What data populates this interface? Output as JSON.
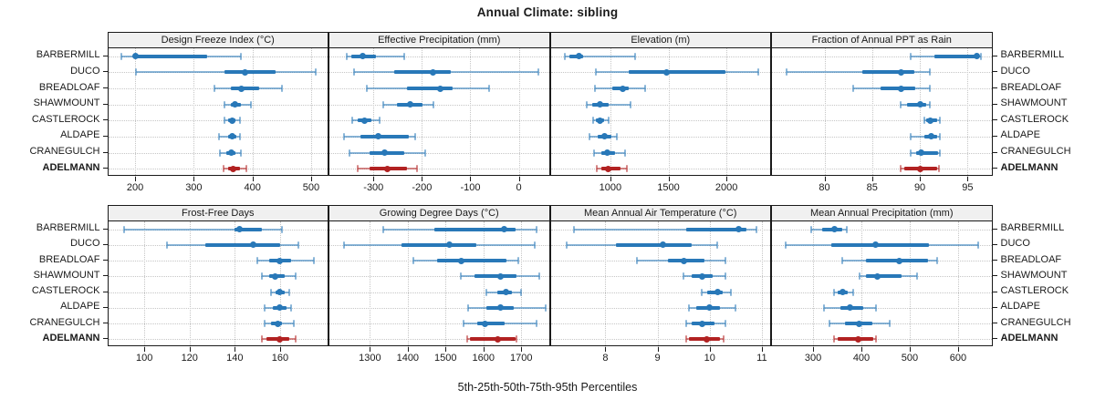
{
  "chart_data": {
    "type": "dot-interval (5-25-50-75-95 percentile trellis)",
    "title": "Annual Climate: sibling",
    "caption": "5th-25th-50th-75th-95th Percentiles",
    "legend_position": "none",
    "grid": "dotted",
    "percentile_order": [
      "p5",
      "p25",
      "p50",
      "p75",
      "p95"
    ],
    "sites": [
      "BARBERMILL",
      "DUCO",
      "BREADLOAF",
      "SHAWMOUNT",
      "CASTLEROCK",
      "ALDAPE",
      "CRANEGULCH",
      "ADELMANN"
    ],
    "highlight_site": "ADELMANN",
    "colors": {
      "site_color": "#2878b8",
      "highlight_color": "#b22222",
      "header_bg": "#f0f0f0",
      "panel_border": "#1a1a1a",
      "gridline": "#c6c6c6",
      "text": "#1a1a1a"
    },
    "panels": [
      {
        "title": "Design Freeze Index (°C)",
        "row": 0,
        "col": 0,
        "xlim": [
          154,
          528
        ],
        "ticks": [
          200,
          300,
          400,
          500
        ],
        "values": [
          [
            176,
            197,
            200,
            322,
            380
          ],
          [
            201,
            353,
            388,
            440,
            508
          ],
          [
            335,
            363,
            381,
            412,
            450
          ],
          [
            352,
            363,
            370,
            381,
            397
          ],
          [
            353,
            358,
            365,
            371,
            378
          ],
          [
            343,
            358,
            365,
            372,
            378
          ],
          [
            345,
            356,
            364,
            371,
            380
          ],
          [
            350,
            358,
            367,
            378,
            390
          ]
        ]
      },
      {
        "title": "Effective Precipitation (mm)",
        "row": 0,
        "col": 1,
        "xlim": [
          -391,
          62
        ],
        "ticks": [
          -300,
          -200,
          -100,
          0
        ],
        "values": [
          [
            -355,
            -345,
            -322,
            -295,
            -236
          ],
          [
            -340,
            -258,
            -177,
            -140,
            40
          ],
          [
            -314,
            -230,
            -163,
            -137,
            -61
          ],
          [
            -280,
            -252,
            -224,
            -199,
            -177
          ],
          [
            -344,
            -333,
            -319,
            -305,
            -288
          ],
          [
            -361,
            -327,
            -291,
            -227,
            -214
          ],
          [
            -349,
            -308,
            -277,
            -236,
            -193
          ],
          [
            -333,
            -308,
            -271,
            -230,
            -211
          ]
        ]
      },
      {
        "title": "Elevation (m)",
        "row": 0,
        "col": 2,
        "xlim": [
          486,
          2376
        ],
        "ticks": [
          1000,
          1500,
          2000
        ],
        "values": [
          [
            610,
            650,
            727,
            768,
            1215
          ],
          [
            878,
            1156,
            1482,
            1990,
            2276
          ],
          [
            865,
            1013,
            1109,
            1156,
            1300
          ],
          [
            797,
            844,
            909,
            987,
            1177
          ],
          [
            849,
            878,
            909,
            948,
            987
          ],
          [
            823,
            891,
            953,
            1005,
            1052
          ],
          [
            857,
            922,
            974,
            1039,
            1130
          ],
          [
            883,
            922,
            982,
            1091,
            1143
          ]
        ]
      },
      {
        "title": "Fraction of Annual PPT as Rain",
        "row": 0,
        "col": 3,
        "xlim": [
          74.5,
          97.5
        ],
        "ticks": [
          80,
          85,
          90,
          95
        ],
        "values": [
          [
            89,
            91.5,
            96,
            96.2,
            96.4
          ],
          [
            76,
            84,
            88,
            89.4,
            91
          ],
          [
            83,
            85.9,
            88,
            89.5,
            91
          ],
          [
            88,
            88.7,
            90,
            90.7,
            91
          ],
          [
            90.5,
            90.7,
            91.1,
            91.8,
            92.1
          ],
          [
            89,
            90.5,
            91.2,
            91.8,
            92.1
          ],
          [
            89,
            89.6,
            90.1,
            91.9,
            92.1
          ],
          [
            88,
            88.4,
            90,
            91.8,
            92
          ]
        ]
      },
      {
        "title": "Frost-Free Days",
        "row": 1,
        "col": 0,
        "xlim": [
          84,
          181
        ],
        "ticks": [
          100,
          120,
          140,
          160
        ],
        "values": [
          [
            91,
            140,
            142,
            152,
            161
          ],
          [
            110,
            127,
            148,
            160,
            168
          ],
          [
            150,
            155,
            160,
            165,
            175
          ],
          [
            152,
            155,
            158,
            162,
            167
          ],
          [
            156,
            158,
            160,
            162,
            164
          ],
          [
            153,
            157,
            160,
            163,
            165
          ],
          [
            153,
            156,
            159,
            161,
            166
          ],
          [
            152,
            154,
            160,
            164,
            167
          ]
        ]
      },
      {
        "title": "Growing Degree Days (°C)",
        "row": 1,
        "col": 1,
        "xlim": [
          1193,
          1773
        ],
        "ticks": [
          1300,
          1400,
          1500,
          1600,
          1700
        ],
        "values": [
          [
            1335,
            1470,
            1655,
            1685,
            1740
          ],
          [
            1232,
            1384,
            1510,
            1582,
            1735
          ],
          [
            1414,
            1478,
            1542,
            1660,
            1692
          ],
          [
            1540,
            1576,
            1644,
            1688,
            1748
          ],
          [
            1608,
            1636,
            1660,
            1676,
            1700
          ],
          [
            1560,
            1608,
            1644,
            1680,
            1764
          ],
          [
            1548,
            1584,
            1604,
            1656,
            1740
          ],
          [
            1556,
            1565,
            1638,
            1684,
            1688
          ]
        ]
      },
      {
        "title": "Mean Annual Air Temperature (°C)",
        "row": 1,
        "col": 2,
        "xlim": [
          6.95,
          11.16
        ],
        "ticks": [
          8,
          9,
          10,
          11
        ],
        "values": [
          [
            7.4,
            9.55,
            10.55,
            10.7,
            10.9
          ],
          [
            7.25,
            8.2,
            9.1,
            9.65,
            10.15
          ],
          [
            8.6,
            9.2,
            9.5,
            9.9,
            10.3
          ],
          [
            9.5,
            9.65,
            9.85,
            10.05,
            10.3
          ],
          [
            9.85,
            9.95,
            10.15,
            10.25,
            10.4
          ],
          [
            9.6,
            9.75,
            10.0,
            10.2,
            10.5
          ],
          [
            9.55,
            9.65,
            9.85,
            10.1,
            10.3
          ],
          [
            9.55,
            9.6,
            9.95,
            10.2,
            10.27
          ]
        ]
      },
      {
        "title": "Mean Annual Precipitation (mm)",
        "row": 1,
        "col": 3,
        "xlim": [
          215,
          669
        ],
        "ticks": [
          300,
          400,
          500,
          600
        ],
        "values": [
          [
            297,
            319,
            345,
            360,
            370
          ],
          [
            244,
            337,
            430,
            540,
            642
          ],
          [
            361,
            409,
            478,
            537,
            556
          ],
          [
            396,
            409,
            433,
            484,
            516
          ],
          [
            344,
            350,
            361,
            372,
            383
          ],
          [
            322,
            356,
            377,
            403,
            431
          ],
          [
            333,
            366,
            395,
            422,
            459
          ],
          [
            344,
            350,
            393,
            425,
            431
          ]
        ]
      }
    ]
  }
}
